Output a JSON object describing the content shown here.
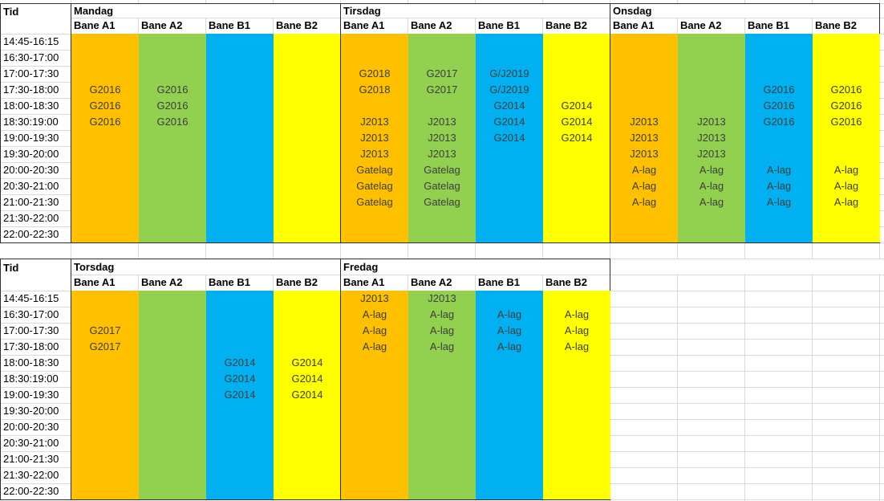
{
  "colors": {
    "lane_a1": "#FFC000",
    "lane_a2": "#92D050",
    "lane_b1": "#00B0F0",
    "lane_b2": "#FFFF00"
  },
  "time_slots": [
    "14:45-16:15",
    "16:30-17:00",
    "17:00-17:30",
    "17:30-18:00",
    "18:00-18:30",
    "18:30:19:00",
    "19:00-19:30",
    "19:30-20:00",
    "20:00-20:30",
    "20:30-21:00",
    "21:00-21:30",
    "21:30-22:00",
    "22:00-22:30"
  ],
  "sections": [
    {
      "time_header": "Tid",
      "days": [
        {
          "name": "Mandag",
          "lanes": [
            {
              "header": "Bane A1",
              "color": "lane_a1",
              "entries": [
                "",
                "",
                "",
                "G2016",
                "G2016",
                "G2016",
                "",
                "",
                "",
                "",
                "",
                "",
                ""
              ]
            },
            {
              "header": "Bane A2",
              "color": "lane_a2",
              "entries": [
                "",
                "",
                "",
                "G2016",
                "G2016",
                "G2016",
                "",
                "",
                "",
                "",
                "",
                "",
                ""
              ]
            },
            {
              "header": "Bane B1",
              "color": "lane_b1",
              "entries": [
                "",
                "",
                "",
                "",
                "",
                "",
                "",
                "",
                "",
                "",
                "",
                "",
                ""
              ]
            },
            {
              "header": "Bane B2",
              "color": "lane_b2",
              "entries": [
                "",
                "",
                "",
                "",
                "",
                "",
                "",
                "",
                "",
                "",
                "",
                "",
                ""
              ]
            }
          ]
        },
        {
          "name": "Tirsdag",
          "lanes": [
            {
              "header": "Bane A1",
              "color": "lane_a1",
              "entries": [
                "",
                "",
                "G2018",
                "G2018",
                "",
                "J2013",
                "J2013",
                "J2013",
                "Gatelag",
                "Gatelag",
                "Gatelag",
                "",
                ""
              ]
            },
            {
              "header": "Bane A2",
              "color": "lane_a2",
              "entries": [
                "",
                "",
                "G2017",
                "G2017",
                "",
                "J2013",
                "J2013",
                "J2013",
                "Gatelag",
                "Gatelag",
                "Gatelag",
                "",
                ""
              ]
            },
            {
              "header": "Bane B1",
              "color": "lane_b1",
              "entries": [
                "",
                "",
                "G/J2019",
                "G/J2019",
                "G2014",
                "G2014",
                "G2014",
                "",
                "",
                "",
                "",
                "",
                ""
              ]
            },
            {
              "header": "Bane B2",
              "color": "lane_b2",
              "entries": [
                "",
                "",
                "",
                "",
                "G2014",
                "G2014",
                "G2014",
                "",
                "",
                "",
                "",
                "",
                ""
              ]
            }
          ]
        },
        {
          "name": "Onsdag",
          "lanes": [
            {
              "header": "Bane A1",
              "color": "lane_a1",
              "entries": [
                "",
                "",
                "",
                "",
                "",
                "J2013",
                "J2013",
                "J2013",
                "A-lag",
                "A-lag",
                "A-lag",
                "",
                ""
              ]
            },
            {
              "header": "Bane A2",
              "color": "lane_a2",
              "entries": [
                "",
                "",
                "",
                "",
                "",
                "J2013",
                "J2013",
                "J2013",
                "A-lag",
                "A-lag",
                "A-lag",
                "",
                ""
              ]
            },
            {
              "header": "Bane B1",
              "color": "lane_b1",
              "entries": [
                "",
                "",
                "",
                "G2016",
                "G2016",
                "G2016",
                "",
                "",
                "A-lag",
                "A-lag",
                "A-lag",
                "",
                ""
              ]
            },
            {
              "header": "Bane B2",
              "color": "lane_b2",
              "entries": [
                "",
                "",
                "",
                "G2016",
                "G2016",
                "G2016",
                "",
                "",
                "A-lag",
                "A-lag",
                "A-lag",
                "",
                ""
              ]
            }
          ]
        }
      ]
    },
    {
      "time_header": "Tid",
      "days": [
        {
          "name": "Torsdag",
          "lanes": [
            {
              "header": "Bane A1",
              "color": "lane_a1",
              "entries": [
                "",
                "",
                "G2017",
                "G2017",
                "",
                "",
                "",
                "",
                "",
                "",
                "",
                "",
                ""
              ]
            },
            {
              "header": "Bane A2",
              "color": "lane_a2",
              "entries": [
                "",
                "",
                "",
                "",
                "",
                "",
                "",
                "",
                "",
                "",
                "",
                "",
                ""
              ]
            },
            {
              "header": "Bane B1",
              "color": "lane_b1",
              "entries": [
                "",
                "",
                "",
                "",
                "G2014",
                "G2014",
                "G2014",
                "",
                "",
                "",
                "",
                "",
                ""
              ]
            },
            {
              "header": "Bane B2",
              "color": "lane_b2",
              "entries": [
                "",
                "",
                "",
                "",
                "G2014",
                "G2014",
                "G2014",
                "",
                "",
                "",
                "",
                "",
                ""
              ]
            }
          ]
        },
        {
          "name": "Fredag",
          "lanes": [
            {
              "header": "Bane A1",
              "color": "lane_a1",
              "entries": [
                "J2013",
                "A-lag",
                "A-lag",
                "A-lag",
                "",
                "",
                "",
                "",
                "",
                "",
                "",
                "",
                ""
              ]
            },
            {
              "header": "Bane A2",
              "color": "lane_a2",
              "entries": [
                "J2013",
                "A-lag",
                "A-lag",
                "A-lag",
                "",
                "",
                "",
                "",
                "",
                "",
                "",
                "",
                ""
              ]
            },
            {
              "header": "Bane B1",
              "color": "lane_b1",
              "entries": [
                "",
                "A-lag",
                "A-lag",
                "A-lag",
                "",
                "",
                "",
                "",
                "",
                "",
                "",
                "",
                ""
              ]
            },
            {
              "header": "Bane B2",
              "color": "lane_b2",
              "entries": [
                "",
                "A-lag",
                "A-lag",
                "A-lag",
                "",
                "",
                "",
                "",
                "",
                "",
                "",
                "",
                ""
              ]
            }
          ]
        }
      ]
    }
  ]
}
